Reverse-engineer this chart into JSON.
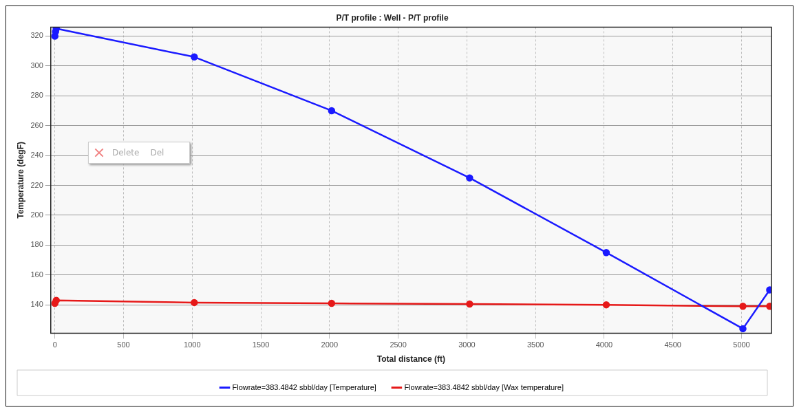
{
  "chart_data": {
    "type": "line",
    "title": "P/T profile : Well - P/T profile",
    "xlabel": "Total distance (ft)",
    "ylabel": "Temperature (degF)",
    "xlim": [
      -30,
      5218
    ],
    "xticks": [
      0,
      500,
      1000,
      1500,
      2000,
      2500,
      3000,
      3500,
      4000,
      4500,
      5000
    ],
    "ylim": [
      121,
      326
    ],
    "yticks": [
      140,
      160,
      180,
      200,
      220,
      240,
      260,
      280,
      300,
      320
    ],
    "grid": true,
    "legend": "bottom",
    "marker": "circle",
    "line_style": "solid",
    "annotations": [
      "Delete",
      "Del"
    ],
    "series": [
      {
        "name": "Flowrate=383.4842 sbbl/day [Temperature]",
        "color": "#1a1aff",
        "x": [
          0,
          5,
          10,
          1015,
          2015,
          3020,
          4015,
          5010,
          5205
        ],
        "values": [
          320,
          323,
          325,
          306,
          270,
          225,
          175,
          124,
          150
        ]
      },
      {
        "name": "Flowrate=383.4842 sbbl/day [Wax temperature]",
        "color": "#e61919",
        "x": [
          0,
          10,
          1015,
          2015,
          3020,
          4015,
          5010,
          5205
        ],
        "values": [
          141,
          143,
          141.5,
          141,
          140.5,
          140,
          139,
          139
        ]
      }
    ]
  }
}
